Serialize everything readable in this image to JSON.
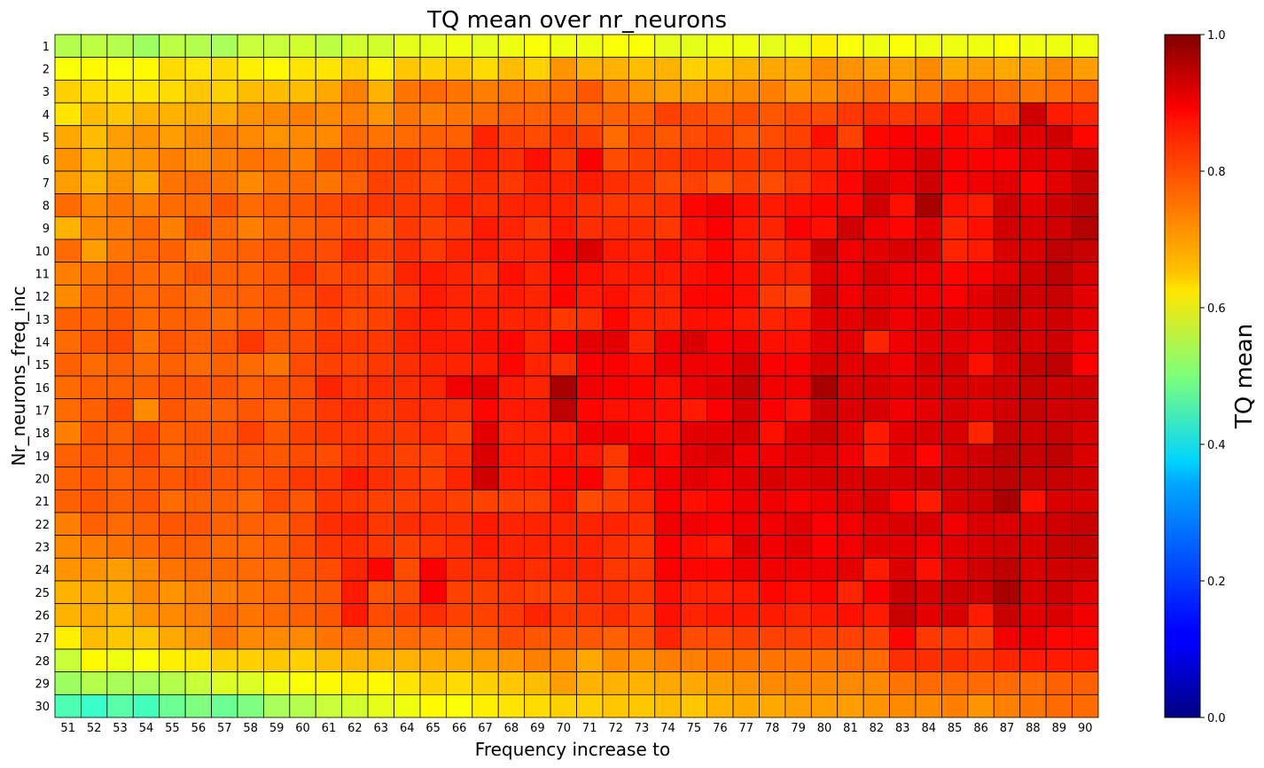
{
  "chart_data": {
    "type": "heatmap",
    "title": "TQ mean over nr_neurons",
    "xlabel": "Frequency increase to",
    "ylabel": "Nr_neurons_freq_inc",
    "colorbar_label": "TQ mean",
    "colormap": "jet",
    "vmin": 0.0,
    "vmax": 1.0,
    "colorbar_ticks": [
      "0.0",
      "0.2",
      "0.4",
      "0.6",
      "0.8",
      "1.0"
    ],
    "x": [
      51,
      52,
      53,
      54,
      55,
      56,
      57,
      58,
      59,
      60,
      61,
      62,
      63,
      64,
      65,
      66,
      67,
      68,
      69,
      70,
      71,
      72,
      73,
      74,
      75,
      76,
      77,
      78,
      79,
      80,
      81,
      82,
      83,
      84,
      85,
      86,
      87,
      88,
      89,
      90
    ],
    "y": [
      1,
      2,
      3,
      4,
      5,
      6,
      7,
      8,
      9,
      10,
      11,
      12,
      13,
      14,
      15,
      16,
      17,
      18,
      19,
      20,
      21,
      22,
      23,
      24,
      25,
      26,
      27,
      28,
      29,
      30
    ],
    "grid": "cell borders",
    "values": [
      [
        0.55,
        0.56,
        0.55,
        0.53,
        0.56,
        0.55,
        0.54,
        0.57,
        0.57,
        0.58,
        0.56,
        0.58,
        0.58,
        0.6,
        0.6,
        0.61,
        0.6,
        0.61,
        0.62,
        0.61,
        0.61,
        0.62,
        0.62,
        0.6,
        0.6,
        0.61,
        0.61,
        0.6,
        0.61,
        0.64,
        0.62,
        0.61,
        0.62,
        0.61,
        0.61,
        0.61,
        0.62,
        0.61,
        0.61,
        0.61
      ],
      [
        0.62,
        0.63,
        0.62,
        0.63,
        0.66,
        0.65,
        0.66,
        0.64,
        0.63,
        0.65,
        0.65,
        0.67,
        0.64,
        0.68,
        0.67,
        0.68,
        0.66,
        0.69,
        0.67,
        0.73,
        0.7,
        0.7,
        0.69,
        0.7,
        0.67,
        0.68,
        0.7,
        0.71,
        0.71,
        0.74,
        0.73,
        0.72,
        0.72,
        0.74,
        0.71,
        0.72,
        0.71,
        0.72,
        0.74,
        0.72
      ],
      [
        0.67,
        0.66,
        0.65,
        0.65,
        0.66,
        0.68,
        0.67,
        0.69,
        0.69,
        0.69,
        0.71,
        0.75,
        0.7,
        0.76,
        0.77,
        0.76,
        0.75,
        0.76,
        0.76,
        0.77,
        0.79,
        0.75,
        0.73,
        0.72,
        0.72,
        0.73,
        0.74,
        0.75,
        0.73,
        0.74,
        0.76,
        0.77,
        0.74,
        0.76,
        0.78,
        0.78,
        0.77,
        0.76,
        0.77,
        0.78
      ],
      [
        0.65,
        0.69,
        0.68,
        0.7,
        0.7,
        0.71,
        0.71,
        0.73,
        0.74,
        0.75,
        0.74,
        0.75,
        0.73,
        0.76,
        0.75,
        0.76,
        0.77,
        0.78,
        0.78,
        0.79,
        0.78,
        0.78,
        0.78,
        0.81,
        0.8,
        0.79,
        0.8,
        0.79,
        0.8,
        0.8,
        0.82,
        0.83,
        0.82,
        0.83,
        0.86,
        0.84,
        0.82,
        0.92,
        0.85,
        0.84
      ],
      [
        0.71,
        0.69,
        0.72,
        0.73,
        0.72,
        0.74,
        0.75,
        0.74,
        0.73,
        0.74,
        0.74,
        0.77,
        0.76,
        0.77,
        0.78,
        0.78,
        0.84,
        0.81,
        0.8,
        0.82,
        0.81,
        0.77,
        0.8,
        0.79,
        0.8,
        0.81,
        0.79,
        0.8,
        0.81,
        0.86,
        0.81,
        0.87,
        0.88,
        0.88,
        0.87,
        0.86,
        0.9,
        0.9,
        0.92,
        0.87
      ],
      [
        0.73,
        0.7,
        0.72,
        0.73,
        0.75,
        0.74,
        0.75,
        0.76,
        0.76,
        0.75,
        0.79,
        0.79,
        0.8,
        0.81,
        0.8,
        0.82,
        0.84,
        0.83,
        0.86,
        0.82,
        0.88,
        0.8,
        0.81,
        0.82,
        0.83,
        0.83,
        0.82,
        0.82,
        0.83,
        0.84,
        0.86,
        0.87,
        0.89,
        0.91,
        0.88,
        0.88,
        0.88,
        0.9,
        0.9,
        0.92
      ],
      [
        0.72,
        0.7,
        0.73,
        0.71,
        0.76,
        0.77,
        0.76,
        0.74,
        0.76,
        0.77,
        0.76,
        0.78,
        0.81,
        0.81,
        0.8,
        0.82,
        0.83,
        0.82,
        0.84,
        0.84,
        0.85,
        0.83,
        0.82,
        0.8,
        0.81,
        0.79,
        0.81,
        0.8,
        0.82,
        0.85,
        0.87,
        0.91,
        0.89,
        0.92,
        0.88,
        0.89,
        0.9,
        0.88,
        0.9,
        0.93
      ],
      [
        0.77,
        0.74,
        0.76,
        0.75,
        0.77,
        0.77,
        0.79,
        0.77,
        0.78,
        0.79,
        0.8,
        0.81,
        0.82,
        0.82,
        0.82,
        0.84,
        0.83,
        0.84,
        0.84,
        0.84,
        0.83,
        0.82,
        0.82,
        0.83,
        0.87,
        0.89,
        0.86,
        0.85,
        0.86,
        0.87,
        0.87,
        0.92,
        0.86,
        0.96,
        0.86,
        0.85,
        0.92,
        0.9,
        0.92,
        0.94
      ],
      [
        0.7,
        0.74,
        0.75,
        0.77,
        0.75,
        0.79,
        0.77,
        0.75,
        0.77,
        0.78,
        0.79,
        0.8,
        0.79,
        0.82,
        0.81,
        0.82,
        0.85,
        0.84,
        0.82,
        0.85,
        0.83,
        0.83,
        0.83,
        0.82,
        0.86,
        0.88,
        0.85,
        0.84,
        0.88,
        0.86,
        0.92,
        0.89,
        0.87,
        0.9,
        0.84,
        0.86,
        0.92,
        0.91,
        0.92,
        0.95
      ],
      [
        0.77,
        0.72,
        0.76,
        0.77,
        0.78,
        0.76,
        0.78,
        0.78,
        0.79,
        0.8,
        0.8,
        0.83,
        0.81,
        0.83,
        0.82,
        0.84,
        0.85,
        0.84,
        0.84,
        0.89,
        0.91,
        0.85,
        0.84,
        0.86,
        0.85,
        0.87,
        0.85,
        0.83,
        0.85,
        0.92,
        0.89,
        0.9,
        0.91,
        0.91,
        0.84,
        0.85,
        0.91,
        0.91,
        0.94,
        0.93
      ],
      [
        0.75,
        0.76,
        0.78,
        0.77,
        0.77,
        0.79,
        0.78,
        0.78,
        0.79,
        0.82,
        0.8,
        0.81,
        0.8,
        0.84,
        0.85,
        0.84,
        0.83,
        0.86,
        0.84,
        0.87,
        0.86,
        0.85,
        0.85,
        0.85,
        0.86,
        0.87,
        0.86,
        0.84,
        0.84,
        0.9,
        0.89,
        0.91,
        0.89,
        0.89,
        0.87,
        0.88,
        0.9,
        0.92,
        0.94,
        0.91
      ],
      [
        0.74,
        0.77,
        0.78,
        0.77,
        0.78,
        0.77,
        0.78,
        0.78,
        0.79,
        0.8,
        0.82,
        0.81,
        0.81,
        0.82,
        0.85,
        0.84,
        0.84,
        0.85,
        0.84,
        0.87,
        0.85,
        0.86,
        0.84,
        0.84,
        0.87,
        0.87,
        0.86,
        0.82,
        0.81,
        0.91,
        0.89,
        0.9,
        0.89,
        0.89,
        0.88,
        0.9,
        0.93,
        0.92,
        0.93,
        0.9
      ],
      [
        0.78,
        0.78,
        0.79,
        0.77,
        0.78,
        0.78,
        0.77,
        0.78,
        0.79,
        0.79,
        0.81,
        0.8,
        0.81,
        0.84,
        0.85,
        0.84,
        0.85,
        0.84,
        0.84,
        0.82,
        0.83,
        0.87,
        0.84,
        0.84,
        0.86,
        0.86,
        0.85,
        0.84,
        0.85,
        0.9,
        0.9,
        0.91,
        0.89,
        0.9,
        0.9,
        0.9,
        0.93,
        0.91,
        0.92,
        0.9
      ],
      [
        0.77,
        0.79,
        0.8,
        0.76,
        0.79,
        0.78,
        0.79,
        0.82,
        0.79,
        0.8,
        0.82,
        0.82,
        0.82,
        0.84,
        0.85,
        0.85,
        0.86,
        0.87,
        0.84,
        0.88,
        0.9,
        0.9,
        0.84,
        0.89,
        0.91,
        0.88,
        0.89,
        0.86,
        0.86,
        0.9,
        0.9,
        0.84,
        0.89,
        0.9,
        0.9,
        0.89,
        0.92,
        0.91,
        0.92,
        0.89
      ],
      [
        0.78,
        0.77,
        0.78,
        0.77,
        0.78,
        0.77,
        0.78,
        0.77,
        0.76,
        0.8,
        0.81,
        0.81,
        0.82,
        0.83,
        0.84,
        0.84,
        0.85,
        0.87,
        0.84,
        0.83,
        0.88,
        0.88,
        0.86,
        0.89,
        0.89,
        0.89,
        0.91,
        0.88,
        0.88,
        0.91,
        0.9,
        0.9,
        0.89,
        0.91,
        0.91,
        0.86,
        0.91,
        0.93,
        0.94,
        0.88
      ],
      [
        0.77,
        0.78,
        0.78,
        0.78,
        0.79,
        0.79,
        0.79,
        0.78,
        0.79,
        0.8,
        0.84,
        0.82,
        0.83,
        0.83,
        0.84,
        0.89,
        0.9,
        0.85,
        0.84,
        0.96,
        0.89,
        0.88,
        0.87,
        0.86,
        0.89,
        0.9,
        0.93,
        0.89,
        0.89,
        0.96,
        0.91,
        0.91,
        0.9,
        0.91,
        0.91,
        0.91,
        0.92,
        0.93,
        0.92,
        0.92
      ],
      [
        0.77,
        0.78,
        0.8,
        0.74,
        0.79,
        0.78,
        0.78,
        0.79,
        0.78,
        0.8,
        0.82,
        0.83,
        0.82,
        0.83,
        0.83,
        0.83,
        0.87,
        0.85,
        0.85,
        0.94,
        0.87,
        0.86,
        0.86,
        0.86,
        0.85,
        0.88,
        0.91,
        0.88,
        0.86,
        0.92,
        0.91,
        0.91,
        0.89,
        0.9,
        0.91,
        0.9,
        0.92,
        0.93,
        0.92,
        0.92
      ],
      [
        0.75,
        0.79,
        0.78,
        0.8,
        0.78,
        0.79,
        0.79,
        0.81,
        0.79,
        0.81,
        0.82,
        0.82,
        0.82,
        0.82,
        0.83,
        0.81,
        0.9,
        0.84,
        0.84,
        0.85,
        0.89,
        0.89,
        0.87,
        0.86,
        0.9,
        0.9,
        0.91,
        0.86,
        0.9,
        0.92,
        0.9,
        0.85,
        0.9,
        0.91,
        0.91,
        0.84,
        0.93,
        0.92,
        0.93,
        0.91
      ],
      [
        0.78,
        0.79,
        0.79,
        0.8,
        0.78,
        0.79,
        0.79,
        0.79,
        0.79,
        0.8,
        0.8,
        0.82,
        0.82,
        0.81,
        0.81,
        0.83,
        0.91,
        0.85,
        0.84,
        0.86,
        0.85,
        0.82,
        0.89,
        0.87,
        0.9,
        0.91,
        0.89,
        0.89,
        0.9,
        0.9,
        0.89,
        0.85,
        0.9,
        0.87,
        0.91,
        0.92,
        0.94,
        0.93,
        0.94,
        0.91
      ],
      [
        0.78,
        0.79,
        0.78,
        0.79,
        0.79,
        0.8,
        0.79,
        0.79,
        0.8,
        0.82,
        0.82,
        0.85,
        0.83,
        0.82,
        0.81,
        0.84,
        0.92,
        0.85,
        0.85,
        0.87,
        0.88,
        0.82,
        0.86,
        0.89,
        0.9,
        0.89,
        0.9,
        0.91,
        0.9,
        0.91,
        0.91,
        0.91,
        0.91,
        0.92,
        0.92,
        0.93,
        0.94,
        0.93,
        0.93,
        0.92
      ],
      [
        0.78,
        0.79,
        0.78,
        0.79,
        0.77,
        0.78,
        0.78,
        0.77,
        0.8,
        0.79,
        0.82,
        0.82,
        0.81,
        0.81,
        0.82,
        0.81,
        0.81,
        0.81,
        0.81,
        0.85,
        0.8,
        0.81,
        0.83,
        0.88,
        0.86,
        0.87,
        0.89,
        0.89,
        0.88,
        0.89,
        0.9,
        0.91,
        0.87,
        0.85,
        0.91,
        0.92,
        0.96,
        0.86,
        0.91,
        0.91
      ],
      [
        0.75,
        0.78,
        0.77,
        0.78,
        0.79,
        0.79,
        0.78,
        0.78,
        0.78,
        0.8,
        0.83,
        0.84,
        0.82,
        0.83,
        0.83,
        0.83,
        0.85,
        0.84,
        0.84,
        0.84,
        0.84,
        0.84,
        0.83,
        0.89,
        0.89,
        0.88,
        0.89,
        0.89,
        0.9,
        0.88,
        0.89,
        0.9,
        0.91,
        0.91,
        0.89,
        0.91,
        0.91,
        0.91,
        0.92,
        0.93
      ],
      [
        0.74,
        0.75,
        0.76,
        0.77,
        0.78,
        0.78,
        0.77,
        0.77,
        0.78,
        0.8,
        0.82,
        0.83,
        0.82,
        0.81,
        0.82,
        0.83,
        0.85,
        0.84,
        0.84,
        0.84,
        0.84,
        0.83,
        0.82,
        0.88,
        0.86,
        0.85,
        0.9,
        0.89,
        0.9,
        0.88,
        0.89,
        0.9,
        0.9,
        0.89,
        0.9,
        0.91,
        0.92,
        0.91,
        0.93,
        0.93
      ],
      [
        0.73,
        0.73,
        0.72,
        0.74,
        0.76,
        0.77,
        0.77,
        0.77,
        0.77,
        0.79,
        0.8,
        0.84,
        0.87,
        0.8,
        0.88,
        0.83,
        0.83,
        0.84,
        0.83,
        0.84,
        0.84,
        0.82,
        0.82,
        0.88,
        0.87,
        0.87,
        0.89,
        0.89,
        0.89,
        0.89,
        0.9,
        0.85,
        0.91,
        0.86,
        0.9,
        0.92,
        0.94,
        0.91,
        0.92,
        0.92
      ],
      [
        0.7,
        0.71,
        0.71,
        0.74,
        0.73,
        0.75,
        0.75,
        0.76,
        0.77,
        0.78,
        0.79,
        0.85,
        0.79,
        0.8,
        0.88,
        0.81,
        0.81,
        0.82,
        0.81,
        0.81,
        0.83,
        0.83,
        0.82,
        0.86,
        0.84,
        0.84,
        0.85,
        0.87,
        0.86,
        0.87,
        0.84,
        0.88,
        0.92,
        0.91,
        0.92,
        0.92,
        0.96,
        0.91,
        0.92,
        0.9
      ],
      [
        0.7,
        0.71,
        0.7,
        0.73,
        0.74,
        0.75,
        0.77,
        0.76,
        0.77,
        0.78,
        0.79,
        0.85,
        0.8,
        0.81,
        0.83,
        0.81,
        0.81,
        0.82,
        0.84,
        0.82,
        0.82,
        0.83,
        0.81,
        0.86,
        0.84,
        0.85,
        0.85,
        0.85,
        0.84,
        0.85,
        0.86,
        0.85,
        0.93,
        0.9,
        0.91,
        0.85,
        0.93,
        0.9,
        0.91,
        0.89
      ],
      [
        0.64,
        0.69,
        0.68,
        0.68,
        0.71,
        0.73,
        0.76,
        0.74,
        0.74,
        0.74,
        0.76,
        0.77,
        0.76,
        0.77,
        0.77,
        0.77,
        0.78,
        0.8,
        0.79,
        0.79,
        0.79,
        0.78,
        0.79,
        0.84,
        0.8,
        0.8,
        0.81,
        0.81,
        0.81,
        0.81,
        0.81,
        0.81,
        0.87,
        0.82,
        0.82,
        0.81,
        0.89,
        0.89,
        0.87,
        0.87
      ],
      [
        0.57,
        0.63,
        0.61,
        0.62,
        0.64,
        0.65,
        0.67,
        0.67,
        0.68,
        0.67,
        0.69,
        0.7,
        0.7,
        0.7,
        0.71,
        0.71,
        0.72,
        0.73,
        0.75,
        0.74,
        0.71,
        0.74,
        0.73,
        0.75,
        0.75,
        0.76,
        0.76,
        0.76,
        0.76,
        0.76,
        0.77,
        0.77,
        0.83,
        0.83,
        0.83,
        0.82,
        0.84,
        0.85,
        0.85,
        0.85
      ],
      [
        0.53,
        0.55,
        0.54,
        0.54,
        0.55,
        0.57,
        0.59,
        0.59,
        0.61,
        0.62,
        0.63,
        0.64,
        0.63,
        0.65,
        0.67,
        0.66,
        0.67,
        0.68,
        0.69,
        0.72,
        0.7,
        0.7,
        0.7,
        0.71,
        0.71,
        0.72,
        0.73,
        0.74,
        0.74,
        0.74,
        0.74,
        0.74,
        0.76,
        0.77,
        0.77,
        0.77,
        0.77,
        0.77,
        0.78,
        0.78
      ],
      [
        0.45,
        0.43,
        0.46,
        0.44,
        0.48,
        0.5,
        0.48,
        0.5,
        0.54,
        0.55,
        0.57,
        0.58,
        0.6,
        0.61,
        0.63,
        0.62,
        0.64,
        0.65,
        0.66,
        0.67,
        0.67,
        0.68,
        0.68,
        0.69,
        0.68,
        0.7,
        0.71,
        0.71,
        0.72,
        0.72,
        0.72,
        0.73,
        0.74,
        0.74,
        0.75,
        0.73,
        0.75,
        0.76,
        0.77,
        0.77
      ]
    ]
  }
}
